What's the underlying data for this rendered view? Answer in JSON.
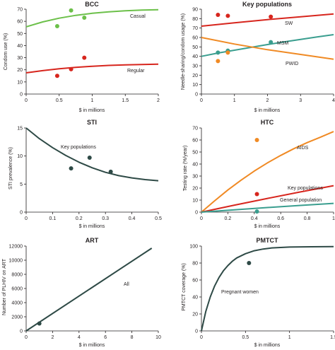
{
  "colors": {
    "axis": "#231f20",
    "green": "#6cc04a",
    "red": "#d7261e",
    "teal": "#3a9e8f",
    "orange": "#f08a24",
    "dark": "#2e4a46"
  },
  "chart_data": [
    {
      "id": "bcc",
      "type": "scatter",
      "title": "BCC",
      "xlabel": "$ in millions",
      "ylabel": "Condom use (%)",
      "xlim": [
        0,
        2
      ],
      "ylim": [
        0,
        70
      ],
      "xticks": [
        0,
        0.5,
        1,
        1.5,
        2
      ],
      "yticks": [
        0,
        10,
        20,
        30,
        40,
        50,
        60,
        70
      ],
      "grid": false,
      "series": [
        {
          "name": "Casual",
          "color_key": "green",
          "points": [
            [
              0.47,
              56
            ],
            [
              0.68,
              69
            ],
            [
              0.88,
              63
            ]
          ],
          "curve": [
            [
              0,
              55.5
            ],
            [
              0.25,
              59.5
            ],
            [
              0.5,
              62.6
            ],
            [
              0.75,
              64.9
            ],
            [
              1.0,
              66.6
            ],
            [
              1.25,
              67.8
            ],
            [
              1.5,
              68.7
            ],
            [
              1.75,
              69.3
            ],
            [
              2.0,
              69.6
            ]
          ]
        },
        {
          "name": "Regular",
          "color_key": "red",
          "points": [
            [
              0.47,
              15
            ],
            [
              0.68,
              20.5
            ],
            [
              0.88,
              30
            ]
          ],
          "curve": [
            [
              0,
              17.5
            ],
            [
              0.25,
              19.3
            ],
            [
              0.5,
              20.8
            ],
            [
              0.75,
              22.0
            ],
            [
              1.0,
              22.9
            ],
            [
              1.25,
              23.6
            ],
            [
              1.5,
              24.1
            ],
            [
              1.75,
              24.4
            ],
            [
              2.0,
              24.6
            ]
          ]
        }
      ]
    },
    {
      "id": "key-populations",
      "type": "scatter",
      "title": "Key populations",
      "xlabel": "$ in millions",
      "ylabel": "Needle-sharing/condom usage (%)",
      "xlim": [
        0,
        4
      ],
      "ylim": [
        0,
        90
      ],
      "xticks": [
        0,
        1,
        2,
        3,
        4
      ],
      "yticks": [
        0,
        10,
        20,
        30,
        40,
        50,
        60,
        70,
        80,
        90
      ],
      "grid": false,
      "series": [
        {
          "name": "SW",
          "color_key": "red",
          "points": [
            [
              0.5,
              84
            ],
            [
              0.8,
              83
            ],
            [
              2.1,
              82
            ]
          ],
          "curve": [
            [
              0,
              72
            ],
            [
              1,
              75.5
            ],
            [
              2,
              79
            ],
            [
              3,
              82
            ],
            [
              4,
              85
            ]
          ]
        },
        {
          "name": "MSM",
          "color_key": "teal",
          "points": [
            [
              0.5,
              44
            ],
            [
              0.8,
              46
            ],
            [
              2.1,
              55
            ]
          ],
          "curve": [
            [
              0,
              40
            ],
            [
              0.5,
              43.5
            ],
            [
              1,
              46.5
            ],
            [
              1.5,
              49.5
            ],
            [
              2,
              52.5
            ],
            [
              2.5,
              55.3
            ],
            [
              3,
              58
            ],
            [
              3.5,
              60.5
            ],
            [
              4,
              63
            ]
          ]
        },
        {
          "name": "PWID",
          "color_key": "orange",
          "points": [
            [
              0.5,
              35
            ],
            [
              0.8,
              44
            ]
          ],
          "curve": [
            [
              0,
              60
            ],
            [
              1,
              53
            ],
            [
              2,
              47
            ],
            [
              3,
              42
            ],
            [
              4,
              37
            ]
          ]
        }
      ]
    },
    {
      "id": "sti",
      "type": "scatter",
      "title": "STI",
      "xlabel": "$ in millions",
      "ylabel": "STI prevalence (%)",
      "xlim": [
        0,
        0.5
      ],
      "ylim": [
        0,
        15
      ],
      "xticks": [
        0,
        0.1,
        0.2,
        0.3,
        0.4,
        0.5
      ],
      "yticks": [
        0,
        5,
        10,
        15
      ],
      "grid": false,
      "series": [
        {
          "name": "Key populations",
          "color_key": "dark",
          "points": [
            [
              0.17,
              7.8
            ],
            [
              0.24,
              9.7
            ],
            [
              0.32,
              7.2
            ]
          ],
          "curve": [
            [
              0,
              15
            ],
            [
              0.05,
              13.1
            ],
            [
              0.1,
              11.5
            ],
            [
              0.15,
              10.1
            ],
            [
              0.2,
              8.9
            ],
            [
              0.25,
              7.9
            ],
            [
              0.3,
              7.1
            ],
            [
              0.35,
              6.5
            ],
            [
              0.4,
              6.1
            ],
            [
              0.45,
              5.8
            ],
            [
              0.5,
              5.6
            ]
          ]
        }
      ]
    },
    {
      "id": "htc",
      "type": "scatter",
      "title": "HTC",
      "xlabel": "$ in millions",
      "ylabel": "Testing rate (%/year)",
      "xlim": [
        0,
        1
      ],
      "ylim": [
        0,
        70
      ],
      "xticks": [
        0,
        0.2,
        0.4,
        0.6,
        0.8,
        1
      ],
      "yticks": [
        0,
        10,
        20,
        30,
        40,
        50,
        60,
        70
      ],
      "grid": false,
      "series": [
        {
          "name": "AIDS",
          "color_key": "orange",
          "points": [
            [
              0.42,
              60
            ]
          ],
          "curve": [
            [
              0,
              0
            ],
            [
              0.1,
              9.4
            ],
            [
              0.2,
              18.4
            ],
            [
              0.3,
              26.6
            ],
            [
              0.4,
              34.2
            ],
            [
              0.5,
              41.0
            ],
            [
              0.6,
              47.2
            ],
            [
              0.7,
              52.8
            ],
            [
              0.8,
              57.8
            ],
            [
              0.9,
              62.3
            ],
            [
              1.0,
              67
            ]
          ]
        },
        {
          "name": "Key populations",
          "color_key": "red",
          "points": [
            [
              0.42,
              15
            ]
          ],
          "curve": [
            [
              0,
              0
            ],
            [
              0.25,
              5.8
            ],
            [
              0.5,
              11.4
            ],
            [
              0.75,
              16.8
            ],
            [
              1.0,
              22
            ]
          ]
        },
        {
          "name": "General population",
          "color_key": "teal",
          "points": [
            [
              0.42,
              0.5
            ]
          ],
          "curve": [
            [
              0,
              0
            ],
            [
              0.25,
              1.9
            ],
            [
              0.5,
              3.8
            ],
            [
              0.75,
              5.6
            ],
            [
              1.0,
              7.3
            ]
          ]
        }
      ]
    },
    {
      "id": "art",
      "type": "scatter",
      "title": "ART",
      "xlabel": "$ in millions",
      "ylabel": "Number of PLHIV on ART",
      "xlim": [
        0,
        10
      ],
      "ylim": [
        0,
        12000
      ],
      "xticks": [
        0,
        2,
        4,
        6,
        8,
        10
      ],
      "yticks": [
        0,
        2000,
        4000,
        6000,
        8000,
        10000,
        12000
      ],
      "grid": false,
      "series": [
        {
          "name": "All",
          "color_key": "dark",
          "points": [
            [
              1.0,
              1050
            ]
          ],
          "curve": [
            [
              0,
              0
            ],
            [
              9.5,
              11700
            ]
          ]
        }
      ]
    },
    {
      "id": "pmtct",
      "type": "scatter",
      "title": "PMTCT",
      "xlabel": "$ in millions",
      "ylabel": "PMTCT coverage (%)",
      "xlim": [
        0,
        1.5
      ],
      "ylim": [
        0,
        100
      ],
      "xticks": [
        0,
        0.5,
        1,
        1.5
      ],
      "yticks": [
        0,
        20,
        40,
        60,
        80,
        100
      ],
      "grid": false,
      "series": [
        {
          "name": "Pregnant women",
          "color_key": "dark",
          "points": [
            [
              0.54,
              80
            ]
          ],
          "curve": [
            [
              0,
              0
            ],
            [
              0.05,
              23
            ],
            [
              0.1,
              40
            ],
            [
              0.15,
              53
            ],
            [
              0.2,
              63
            ],
            [
              0.25,
              71
            ],
            [
              0.3,
              77
            ],
            [
              0.35,
              82
            ],
            [
              0.4,
              86
            ],
            [
              0.5,
              91
            ],
            [
              0.6,
              94.5
            ],
            [
              0.7,
              96.5
            ],
            [
              0.8,
              97.8
            ],
            [
              1.0,
              98.8
            ],
            [
              1.25,
              99.2
            ],
            [
              1.5,
              99.3
            ]
          ]
        }
      ]
    }
  ]
}
